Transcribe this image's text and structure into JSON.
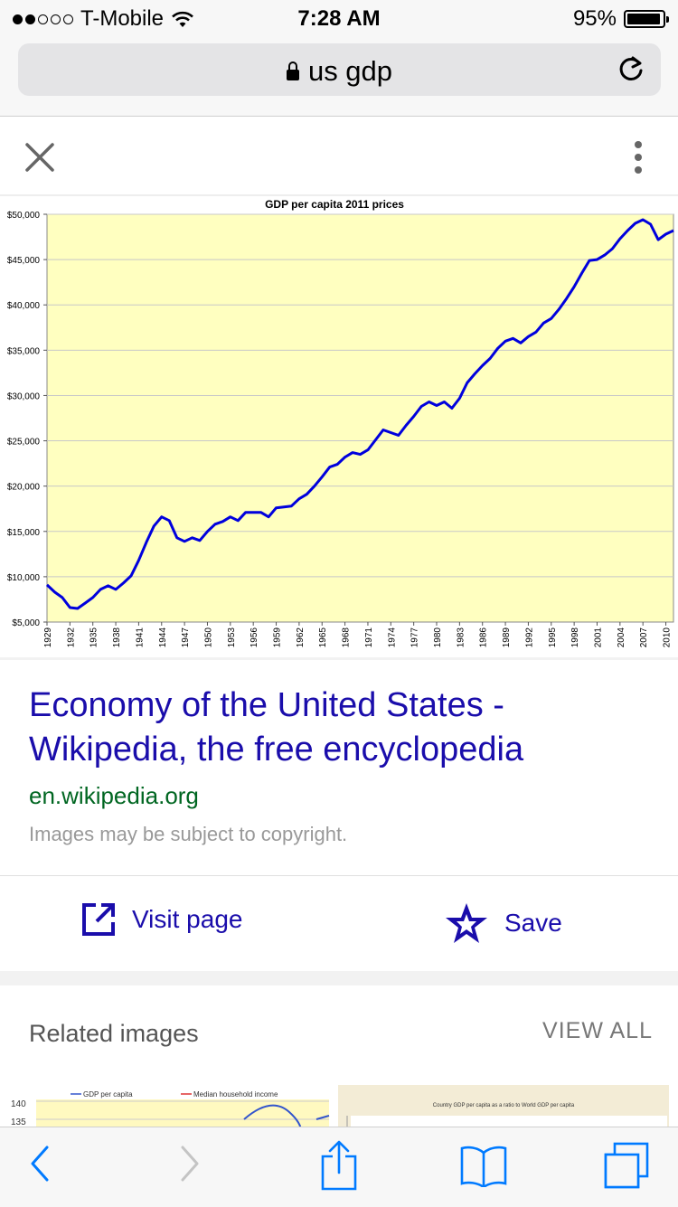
{
  "status": {
    "carrier": "T-Mobile",
    "time": "7:28 AM",
    "battery": "95%",
    "battery_level": 0.95,
    "signal_bars_filled": 2,
    "signal_bars_total": 5
  },
  "browser": {
    "url_text": "us gdp"
  },
  "icons": [
    "lock-icon",
    "wifi-icon",
    "battery-icon",
    "reload-icon",
    "close-icon",
    "more-vert-icon",
    "open-in-new-icon",
    "star-icon",
    "back-icon",
    "forward-icon",
    "share-icon",
    "bookmarks-icon",
    "tabs-icon"
  ],
  "colors": {
    "link": "#1a0dab",
    "domain": "#006621",
    "chart_bg": "#ffffc0",
    "line": "#0000dd",
    "ios_blue": "#007aff"
  },
  "result": {
    "title": "Economy of the United States - Wikipedia, the free encyclopedia",
    "domain": "en.wikipedia.org",
    "copyright": "Images may be subject to copyright.",
    "visit_label": "Visit page",
    "save_label": "Save"
  },
  "related": {
    "label": "Related images",
    "view_all": "VIEW ALL",
    "thumb1": {
      "legend": [
        "GDP per capita",
        "Median household income"
      ],
      "ticks": [
        "140",
        "135"
      ]
    },
    "thumb2": {
      "title": "Country GDP per capita as a ratio to World GDP per capita"
    }
  },
  "chart_data": {
    "type": "line",
    "title": "GDP per capita 2011 prices",
    "xlabel": "",
    "ylabel": "",
    "ylim": [
      5000,
      50000
    ],
    "y_ticks": [
      "$5,000",
      "$10,000",
      "$15,000",
      "$20,000",
      "$25,000",
      "$30,000",
      "$35,000",
      "$40,000",
      "$45,000",
      "$50,000"
    ],
    "x_ticks": [
      "1929",
      "1932",
      "1935",
      "1938",
      "1941",
      "1944",
      "1947",
      "1950",
      "1953",
      "1956",
      "1959",
      "1962",
      "1965",
      "1968",
      "1971",
      "1974",
      "1977",
      "1980",
      "1983",
      "1986",
      "1989",
      "1992",
      "1995",
      "1998",
      "2001",
      "2004",
      "2007",
      "2010"
    ],
    "grid": true,
    "legend": "none",
    "series": [
      {
        "x": [
          1929,
          1930,
          1931,
          1932,
          1933,
          1934,
          1935,
          1936,
          1937,
          1938,
          1939,
          1940,
          1941,
          1942,
          1943,
          1944,
          1945,
          1946,
          1947,
          1948,
          1949,
          1950,
          1951,
          1952,
          1953,
          1954,
          1955,
          1956,
          1957,
          1958,
          1959,
          1960,
          1961,
          1962,
          1963,
          1964,
          1965,
          1966,
          1967,
          1968,
          1969,
          1970,
          1971,
          1972,
          1973,
          1974,
          1975,
          1976,
          1977,
          1978,
          1979,
          1980,
          1981,
          1982,
          1983,
          1984,
          1985,
          1986,
          1987,
          1988,
          1989,
          1990,
          1991,
          1992,
          1993,
          1994,
          1995,
          1996,
          1997,
          1998,
          1999,
          2000,
          2001,
          2002,
          2003,
          2004,
          2005,
          2006,
          2007,
          2008,
          2009,
          2010,
          2011
        ],
        "values": [
          9100,
          8300,
          7700,
          6600,
          6500,
          7100,
          7700,
          8600,
          9000,
          8600,
          9300,
          10100,
          11800,
          13800,
          15600,
          16600,
          16200,
          14300,
          13900,
          14300,
          14000,
          15000,
          15800,
          16100,
          16600,
          16200,
          17100,
          17100,
          17100,
          16600,
          17600,
          17700,
          17800,
          18600,
          19100,
          20000,
          21000,
          22100,
          22400,
          23200,
          23700,
          23500,
          24000,
          25100,
          26200,
          25900,
          25600,
          26700,
          27700,
          28800,
          29300,
          28900,
          29300,
          28600,
          29700,
          31400,
          32400,
          33300,
          34100,
          35200,
          36000,
          36300,
          35800,
          36500,
          37000,
          38000,
          38500,
          39500,
          40700,
          42000,
          43500,
          44900,
          45000,
          45500,
          46200,
          47300,
          48200,
          49000,
          49400,
          48900,
          47200,
          47800,
          48200
        ]
      }
    ]
  }
}
